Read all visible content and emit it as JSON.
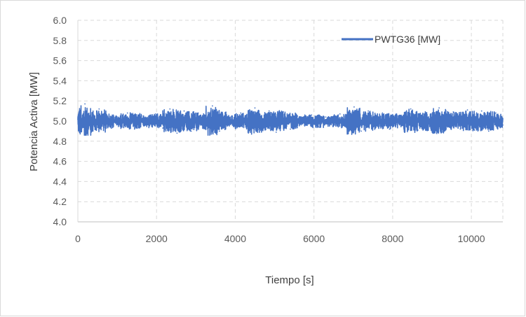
{
  "chart_data": {
    "type": "line",
    "title": "",
    "xlabel": "Tiempo [s]",
    "ylabel": "Potencia Activa [MW]",
    "xlim": [
      0,
      10800
    ],
    "ylim": [
      4.0,
      6.0
    ],
    "x_ticks": [
      0,
      2000,
      4000,
      6000,
      8000,
      10000
    ],
    "x_tick_labels": [
      "0",
      "2000",
      "4000",
      "6000",
      "8000",
      "10000"
    ],
    "y_ticks": [
      4.0,
      4.2,
      4.4,
      4.6,
      4.8,
      5.0,
      5.2,
      5.4,
      5.6,
      5.8,
      6.0
    ],
    "y_tick_labels": [
      "4.0",
      "4.2",
      "4.4",
      "4.6",
      "4.8",
      "5.0",
      "5.2",
      "5.4",
      "5.6",
      "5.8",
      "6.0"
    ],
    "grid": true,
    "legend_position": "top-right",
    "series": [
      {
        "name": "PWTG36 [MW]",
        "color": "#4472c4",
        "mean": 5.0,
        "range_min": 4.86,
        "range_max": 5.17,
        "note_samples_x_start": 0,
        "note_samples_x_end": 10800,
        "points": [
          [
            0,
            5.02
          ],
          [
            180,
            5.17
          ],
          [
            360,
            4.9
          ],
          [
            540,
            5.12
          ],
          [
            720,
            4.93
          ],
          [
            900,
            5.06
          ],
          [
            1080,
            4.95
          ],
          [
            1260,
            5.08
          ],
          [
            1440,
            4.92
          ],
          [
            1620,
            5.05
          ],
          [
            1800,
            4.96
          ],
          [
            1980,
            5.07
          ],
          [
            2160,
            4.93
          ],
          [
            2340,
            5.12
          ],
          [
            2520,
            4.88
          ],
          [
            2700,
            5.1
          ],
          [
            2880,
            4.9
          ],
          [
            3060,
            5.08
          ],
          [
            3240,
            4.94
          ],
          [
            3420,
            5.15
          ],
          [
            3600,
            4.9
          ],
          [
            3780,
            5.06
          ],
          [
            3960,
            4.95
          ],
          [
            4140,
            5.08
          ],
          [
            4320,
            4.93
          ],
          [
            4500,
            5.13
          ],
          [
            4680,
            4.92
          ],
          [
            4860,
            5.1
          ],
          [
            5040,
            4.89
          ],
          [
            5220,
            5.09
          ],
          [
            5400,
            4.92
          ],
          [
            5580,
            5.05
          ],
          [
            5760,
            4.96
          ],
          [
            5940,
            5.06
          ],
          [
            6120,
            4.94
          ],
          [
            6300,
            5.04
          ],
          [
            6480,
            4.95
          ],
          [
            6660,
            5.07
          ],
          [
            6840,
            4.93
          ],
          [
            7020,
            5.14
          ],
          [
            7200,
            4.9
          ],
          [
            7380,
            5.1
          ],
          [
            7560,
            4.93
          ],
          [
            7740,
            5.08
          ],
          [
            7920,
            4.92
          ],
          [
            8100,
            5.07
          ],
          [
            8280,
            4.94
          ],
          [
            8460,
            5.12
          ],
          [
            8640,
            4.91
          ],
          [
            8820,
            5.07
          ],
          [
            9000,
            4.9
          ],
          [
            9180,
            5.13
          ],
          [
            9360,
            4.93
          ],
          [
            9540,
            5.09
          ],
          [
            9720,
            4.92
          ],
          [
            9900,
            5.11
          ],
          [
            10080,
            4.91
          ],
          [
            10260,
            5.1
          ],
          [
            10440,
            4.9
          ],
          [
            10620,
            5.08
          ],
          [
            10800,
            4.96
          ]
        ]
      }
    ]
  }
}
